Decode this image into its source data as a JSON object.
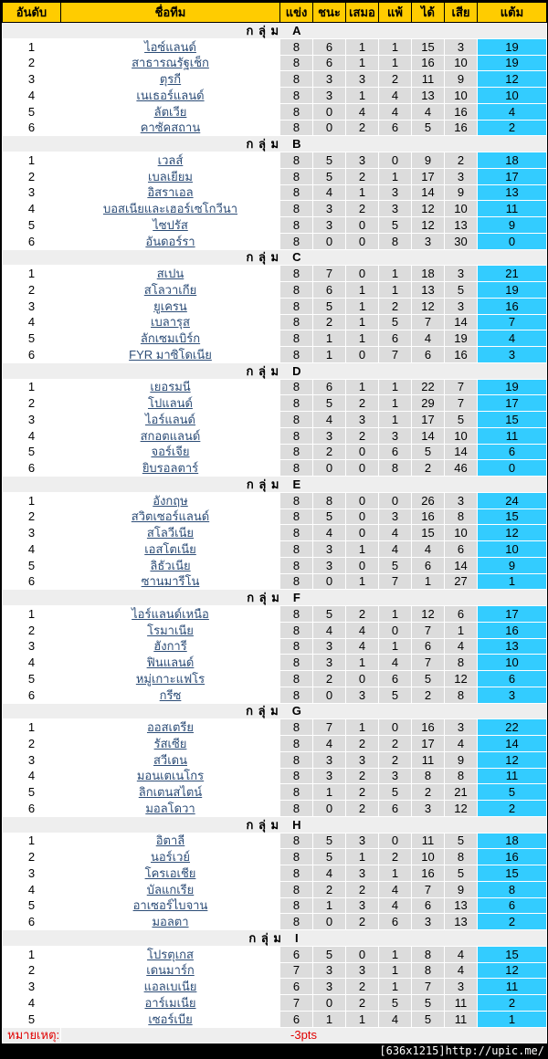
{
  "colors": {
    "header_bg": "#FFCC00",
    "stat_cell_bg": "#DCDCDC",
    "points_cell_bg": "#33CCFF",
    "group_row_bg": "#EEEEEE",
    "team_link": "#2D4D77",
    "note_text": "#E00000",
    "watermark_bar_bg": "#000000"
  },
  "table": {
    "columns": [
      "อันดับ",
      "ชื่อทีม",
      "แข่ง",
      "ชนะ",
      "เสมอ",
      "แพ้",
      "ได้",
      "เสีย",
      "แต้ม"
    ],
    "group_word": "ก ลุ่ ม",
    "note_label": "หมายเหตุ:",
    "note_value": "-3pts",
    "groups": [
      {
        "letter": "A",
        "teams": [
          {
            "rank": 1,
            "name": "ไอซ์แลนด์",
            "stats": [
              8,
              6,
              1,
              1,
              15,
              3
            ],
            "pts": 19
          },
          {
            "rank": 2,
            "name": "สาธารณรัฐเช็ก",
            "stats": [
              8,
              6,
              1,
              1,
              16,
              10
            ],
            "pts": 19
          },
          {
            "rank": 3,
            "name": "ตุรกี",
            "stats": [
              8,
              3,
              3,
              2,
              11,
              9
            ],
            "pts": 12
          },
          {
            "rank": 4,
            "name": "เนเธอร์แลนด์",
            "stats": [
              8,
              3,
              1,
              4,
              13,
              10
            ],
            "pts": 10
          },
          {
            "rank": 5,
            "name": "ลัตเวีย",
            "stats": [
              8,
              0,
              4,
              4,
              4,
              16
            ],
            "pts": 4
          },
          {
            "rank": 6,
            "name": "คาซัคสถาน",
            "stats": [
              8,
              0,
              2,
              6,
              5,
              16
            ],
            "pts": 2
          }
        ]
      },
      {
        "letter": "B",
        "teams": [
          {
            "rank": 1,
            "name": "เวลส์",
            "stats": [
              8,
              5,
              3,
              0,
              9,
              2
            ],
            "pts": 18
          },
          {
            "rank": 2,
            "name": "เบลเยียม",
            "stats": [
              8,
              5,
              2,
              1,
              17,
              3
            ],
            "pts": 17
          },
          {
            "rank": 3,
            "name": "อิสราเอล",
            "stats": [
              8,
              4,
              1,
              3,
              14,
              9
            ],
            "pts": 13
          },
          {
            "rank": 4,
            "name": "บอสเนียและเฮอร์เซโกวีนา",
            "stats": [
              8,
              3,
              2,
              3,
              12,
              10
            ],
            "pts": 11
          },
          {
            "rank": 5,
            "name": "ไซปรัส",
            "stats": [
              8,
              3,
              0,
              5,
              12,
              13
            ],
            "pts": 9
          },
          {
            "rank": 6,
            "name": "อันดอร์รา",
            "stats": [
              8,
              0,
              0,
              8,
              3,
              30
            ],
            "pts": 0
          }
        ]
      },
      {
        "letter": "C",
        "teams": [
          {
            "rank": 1,
            "name": "สเปน",
            "stats": [
              8,
              7,
              0,
              1,
              18,
              3
            ],
            "pts": 21
          },
          {
            "rank": 2,
            "name": "สโลวาเกีย",
            "stats": [
              8,
              6,
              1,
              1,
              13,
              5
            ],
            "pts": 19
          },
          {
            "rank": 3,
            "name": "ยูเครน",
            "stats": [
              8,
              5,
              1,
              2,
              12,
              3
            ],
            "pts": 16
          },
          {
            "rank": 4,
            "name": "เบลารุส",
            "stats": [
              8,
              2,
              1,
              5,
              7,
              14
            ],
            "pts": 7
          },
          {
            "rank": 5,
            "name": "ลักเซมเบิร์ก",
            "stats": [
              8,
              1,
              1,
              6,
              4,
              19
            ],
            "pts": 4
          },
          {
            "rank": 6,
            "name": "FYR มาซิโดเนีย",
            "stats": [
              8,
              1,
              0,
              7,
              6,
              16
            ],
            "pts": 3
          }
        ]
      },
      {
        "letter": "D",
        "teams": [
          {
            "rank": 1,
            "name": "เยอรมนี",
            "stats": [
              8,
              6,
              1,
              1,
              22,
              7
            ],
            "pts": 19
          },
          {
            "rank": 2,
            "name": "โปแลนด์",
            "stats": [
              8,
              5,
              2,
              1,
              29,
              7
            ],
            "pts": 17
          },
          {
            "rank": 3,
            "name": "ไอร์แลนด์",
            "stats": [
              8,
              4,
              3,
              1,
              17,
              5
            ],
            "pts": 15
          },
          {
            "rank": 4,
            "name": "สกอตแลนด์",
            "stats": [
              8,
              3,
              2,
              3,
              14,
              10
            ],
            "pts": 11
          },
          {
            "rank": 5,
            "name": "จอร์เจีย",
            "stats": [
              8,
              2,
              0,
              6,
              5,
              14
            ],
            "pts": 6
          },
          {
            "rank": 6,
            "name": "ยิบรอลตาร์",
            "stats": [
              8,
              0,
              0,
              8,
              2,
              46
            ],
            "pts": 0
          }
        ]
      },
      {
        "letter": "E",
        "teams": [
          {
            "rank": 1,
            "name": "อังกฤษ",
            "stats": [
              8,
              8,
              0,
              0,
              26,
              3
            ],
            "pts": 24
          },
          {
            "rank": 2,
            "name": "สวิตเซอร์แลนด์",
            "stats": [
              8,
              5,
              0,
              3,
              16,
              8
            ],
            "pts": 15
          },
          {
            "rank": 3,
            "name": "สโลวีเนีย",
            "stats": [
              8,
              4,
              0,
              4,
              15,
              10
            ],
            "pts": 12
          },
          {
            "rank": 4,
            "name": "เอสโตเนีย",
            "stats": [
              8,
              3,
              1,
              4,
              4,
              6
            ],
            "pts": 10
          },
          {
            "rank": 5,
            "name": "ลิธัวเนีย",
            "stats": [
              8,
              3,
              0,
              5,
              6,
              14
            ],
            "pts": 9
          },
          {
            "rank": 6,
            "name": "ซานมารีโน",
            "stats": [
              8,
              0,
              1,
              7,
              1,
              27
            ],
            "pts": 1
          }
        ]
      },
      {
        "letter": "F",
        "teams": [
          {
            "rank": 1,
            "name": "ไอร์แลนด์เหนือ",
            "stats": [
              8,
              5,
              2,
              1,
              12,
              6
            ],
            "pts": 17
          },
          {
            "rank": 2,
            "name": "โรมาเนีย",
            "stats": [
              8,
              4,
              4,
              0,
              7,
              1
            ],
            "pts": 16
          },
          {
            "rank": 3,
            "name": "ฮังการี",
            "stats": [
              8,
              3,
              4,
              1,
              6,
              4
            ],
            "pts": 13
          },
          {
            "rank": 4,
            "name": "ฟินแลนด์",
            "stats": [
              8,
              3,
              1,
              4,
              7,
              8
            ],
            "pts": 10
          },
          {
            "rank": 5,
            "name": "หมู่เกาะแฟโร",
            "stats": [
              8,
              2,
              0,
              6,
              5,
              12
            ],
            "pts": 6
          },
          {
            "rank": 6,
            "name": "กรีซ",
            "stats": [
              8,
              0,
              3,
              5,
              2,
              8
            ],
            "pts": 3
          }
        ]
      },
      {
        "letter": "G",
        "teams": [
          {
            "rank": 1,
            "name": "ออสเตรีย",
            "stats": [
              8,
              7,
              1,
              0,
              16,
              3
            ],
            "pts": 22
          },
          {
            "rank": 2,
            "name": "รัสเซีย",
            "stats": [
              8,
              4,
              2,
              2,
              17,
              4
            ],
            "pts": 14
          },
          {
            "rank": 3,
            "name": "สวีเดน",
            "stats": [
              8,
              3,
              3,
              2,
              11,
              9
            ],
            "pts": 12
          },
          {
            "rank": 4,
            "name": "มอนเตเนโกร",
            "stats": [
              8,
              3,
              2,
              3,
              8,
              8
            ],
            "pts": 11
          },
          {
            "rank": 5,
            "name": "ลิกเตนสไตน์",
            "stats": [
              8,
              1,
              2,
              5,
              2,
              21
            ],
            "pts": 5
          },
          {
            "rank": 6,
            "name": "มอลโดวา",
            "stats": [
              8,
              0,
              2,
              6,
              3,
              12
            ],
            "pts": 2
          }
        ]
      },
      {
        "letter": "H",
        "teams": [
          {
            "rank": 1,
            "name": "อิตาลี",
            "stats": [
              8,
              5,
              3,
              0,
              11,
              5
            ],
            "pts": 18
          },
          {
            "rank": 2,
            "name": "นอร์เวย์",
            "stats": [
              8,
              5,
              1,
              2,
              10,
              8
            ],
            "pts": 16
          },
          {
            "rank": 3,
            "name": "โครเอเชีย",
            "stats": [
              8,
              4,
              3,
              1,
              16,
              5
            ],
            "pts": 15
          },
          {
            "rank": 4,
            "name": "บัลแกเรีย",
            "stats": [
              8,
              2,
              2,
              4,
              7,
              9
            ],
            "pts": 8
          },
          {
            "rank": 5,
            "name": "อาเซอร์ไบจาน",
            "stats": [
              8,
              1,
              3,
              4,
              6,
              13
            ],
            "pts": 6
          },
          {
            "rank": 6,
            "name": "มอลตา",
            "stats": [
              8,
              0,
              2,
              6,
              3,
              13
            ],
            "pts": 2
          }
        ]
      },
      {
        "letter": "I",
        "teams": [
          {
            "rank": 1,
            "name": "โปรตุเกส",
            "stats": [
              6,
              5,
              0,
              1,
              8,
              4
            ],
            "pts": 15
          },
          {
            "rank": 2,
            "name": "เดนมาร์ก",
            "stats": [
              7,
              3,
              3,
              1,
              8,
              4
            ],
            "pts": 12
          },
          {
            "rank": 3,
            "name": "แอลเบเนีย",
            "stats": [
              6,
              3,
              2,
              1,
              7,
              3
            ],
            "pts": 11
          },
          {
            "rank": 4,
            "name": "อาร์เมเนีย",
            "stats": [
              7,
              0,
              2,
              5,
              5,
              11
            ],
            "pts": 2
          },
          {
            "rank": 5,
            "name": "เซอร์เบีย",
            "stats": [
              6,
              1,
              1,
              4,
              5,
              11
            ],
            "pts": 1
          }
        ]
      }
    ]
  },
  "watermark": {
    "text": "[636x1215]http://upic.me/"
  }
}
